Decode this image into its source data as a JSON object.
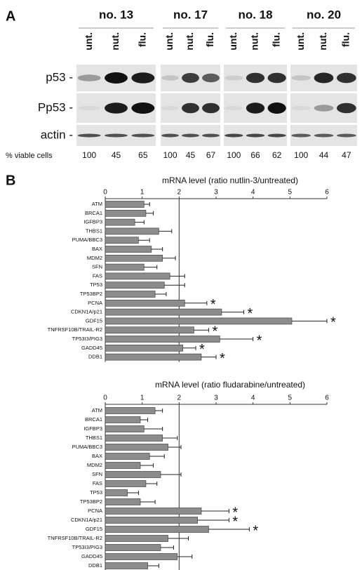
{
  "panel_a": {
    "label": "A",
    "groups": [
      "no. 13",
      "no. 17",
      "no. 18",
      "no. 20"
    ],
    "lanes": [
      "unt.",
      "nut.",
      "flu."
    ],
    "rows": [
      "p53 -",
      "Pp53 -",
      "actin -"
    ],
    "viable_label": "% viable cells",
    "viable": [
      [
        100,
        45,
        65
      ],
      [
        100,
        45,
        67
      ],
      [
        100,
        66,
        62
      ],
      [
        100,
        44,
        47
      ]
    ]
  },
  "panel_b_label": "B",
  "chart_data": [
    {
      "type": "bar",
      "orientation": "horizontal",
      "title": "mRNA level (ratio nutlin-3/untreated)",
      "categories": [
        "ATM",
        "BRCA1",
        "IGFBP3",
        "THBS1",
        "PUMA/BBC3",
        "BAX",
        "MDM2",
        "SFN",
        "FAS",
        "TP53",
        "TP53BP2",
        "PCNA",
        "CDKN1A/p21",
        "GDF15",
        "TNFRSF10B/TRAIL-R2",
        "TP53I3/PIG3",
        "GADD45",
        "DDB1"
      ],
      "series": [
        {
          "color": "#8c8c8c",
          "values": [
            1.05,
            1.1,
            0.8,
            1.45,
            0.9,
            1.25,
            1.55,
            1.05,
            1.75,
            1.6,
            1.35,
            2.15,
            3.15,
            5.05,
            2.4,
            3.1,
            2.1,
            2.6
          ],
          "errors": [
            0.15,
            0.2,
            0.25,
            0.35,
            0.3,
            0.3,
            0.35,
            0.35,
            0.4,
            0.55,
            0.3,
            0.6,
            0.6,
            0.95,
            0.4,
            0.9,
            0.35,
            0.4
          ],
          "markers": [
            null,
            null,
            null,
            null,
            null,
            null,
            null,
            null,
            null,
            null,
            null,
            "*",
            "*",
            "*",
            "*",
            "*",
            "*",
            "*"
          ]
        }
      ],
      "xlim": [
        0,
        6
      ],
      "xticks": [
        0,
        1,
        2,
        3,
        4,
        5,
        6
      ],
      "reference_line": 2
    },
    {
      "type": "bar",
      "orientation": "horizontal",
      "title": "mRNA level (ratio fludarabine/untreated)",
      "categories": [
        "ATM",
        "BRCA1",
        "IGFBP3",
        "THBS1",
        "PUMA/BBC3",
        "BAX",
        "MDM2",
        "SFN",
        "FAS",
        "TP53",
        "TP53BP2",
        "PCNA",
        "CDKN1A/p21",
        "GDF15",
        "TNFRSF10B/TRAIL-R2",
        "TP53I3/PIG3",
        "GADD45",
        "DDB1"
      ],
      "series": [
        {
          "color": "#8c8c8c",
          "values": [
            1.35,
            0.95,
            1.05,
            1.55,
            1.7,
            1.2,
            0.95,
            1.5,
            1.1,
            0.6,
            0.95,
            2.6,
            2.5,
            2.8,
            1.7,
            1.5,
            1.95,
            1.15
          ],
          "errors": [
            0.2,
            0.2,
            0.5,
            0.4,
            0.35,
            0.4,
            0.35,
            0.55,
            0.3,
            0.3,
            0.4,
            0.75,
            0.85,
            1.1,
            0.55,
            0.35,
            0.4,
            0.3
          ],
          "markers": [
            null,
            null,
            null,
            null,
            null,
            null,
            null,
            null,
            null,
            null,
            null,
            "*",
            "*",
            "*",
            null,
            null,
            null,
            null
          ]
        }
      ],
      "xlim": [
        0,
        6
      ],
      "xticks": [
        0,
        1,
        2,
        3,
        4,
        5,
        6
      ],
      "reference_line": 2
    }
  ]
}
